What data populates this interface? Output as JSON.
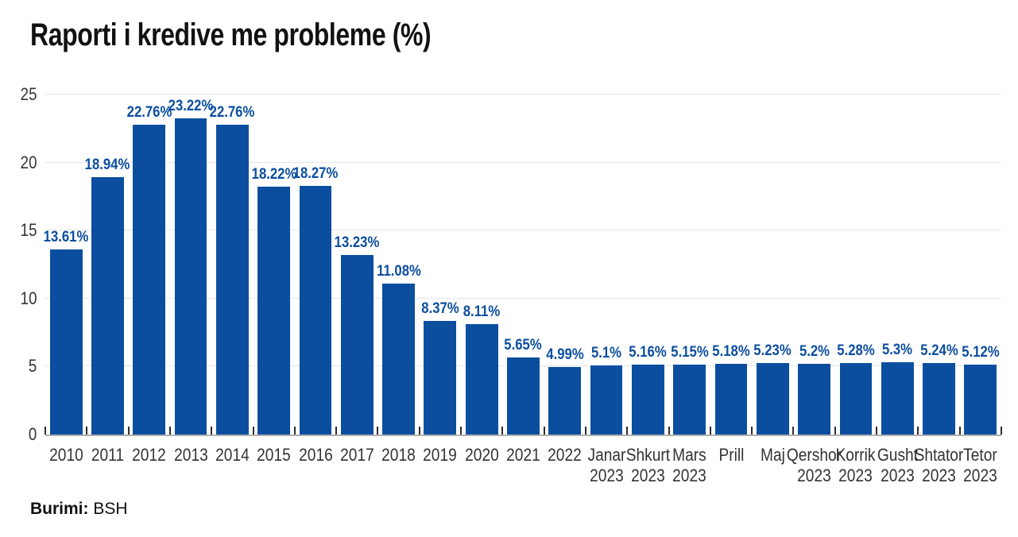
{
  "title": "Raporti i kredive me probleme (%)",
  "source": {
    "prefix": "Burimi:",
    "name": "BSH"
  },
  "colors": {
    "bar": "#0b4e9f",
    "value_label": "#0b4e9f",
    "grid": "#e6e6e6",
    "axis_line": "#b0b0b0",
    "tick": "#2f2f2f",
    "axis_text": "#333333",
    "title_text": "#111111"
  },
  "chart_data": {
    "type": "bar",
    "title": "Raporti i kredive me probleme (%)",
    "xlabel": "",
    "ylabel": "",
    "ylim": [
      0,
      25
    ],
    "yticks": [
      0,
      5,
      10,
      15,
      20,
      25
    ],
    "grid": "horizontal",
    "legend": "none",
    "categories": [
      [
        "2010"
      ],
      [
        "2011"
      ],
      [
        "2012"
      ],
      [
        "2013"
      ],
      [
        "2014"
      ],
      [
        "2015"
      ],
      [
        "2016"
      ],
      [
        "2017"
      ],
      [
        "2018"
      ],
      [
        "2019"
      ],
      [
        "2020"
      ],
      [
        "2021"
      ],
      [
        "2022"
      ],
      [
        "Janar",
        "2023"
      ],
      [
        "Shkurt",
        "2023"
      ],
      [
        "Mars",
        "2023"
      ],
      [
        "Prill"
      ],
      [
        "Maj"
      ],
      [
        "Qershor",
        "2023"
      ],
      [
        "Korrik",
        "2023"
      ],
      [
        "Gusht",
        "2023"
      ],
      [
        "Shtator",
        "2023"
      ],
      [
        "Tetor",
        "2023"
      ]
    ],
    "values": [
      13.61,
      18.94,
      22.76,
      23.22,
      22.76,
      18.22,
      18.27,
      13.23,
      11.08,
      8.37,
      8.11,
      5.65,
      4.99,
      5.1,
      5.16,
      5.15,
      5.18,
      5.23,
      5.2,
      5.28,
      5.3,
      5.24,
      5.12
    ],
    "value_labels": [
      "13.61%",
      "18.94%",
      "22.76%",
      "23.22%",
      "22.76%",
      "18.22%",
      "18.27%",
      "13.23%",
      "11.08%",
      "8.37%",
      "8.11%",
      "5.65%",
      "4.99%",
      "5.1%",
      "5.16%",
      "5.15%",
      "5.18%",
      "5.23%",
      "5.2%",
      "5.28%",
      "5.3%",
      "5.24%",
      "5.12%"
    ]
  }
}
